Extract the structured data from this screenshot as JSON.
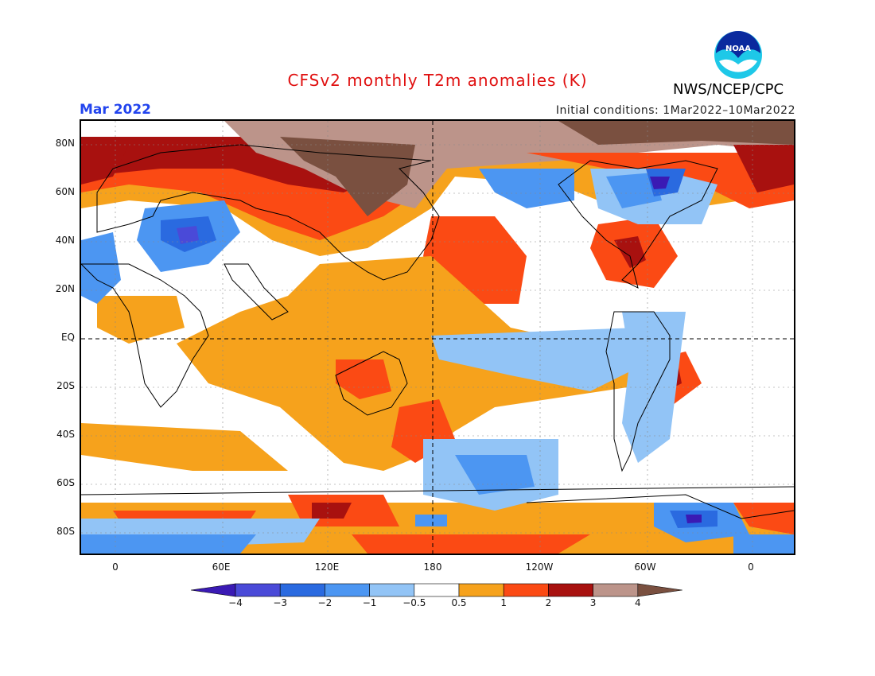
{
  "title": "CFSv2 monthly T2m anomalies (K)",
  "agency": "NWS/NCEP/CPC",
  "logo_text": "NOAA",
  "month": "Mar 2022",
  "initial_conditions": "Initial conditions: 1Mar2022–10Mar2022",
  "lat_labels": [
    "80N",
    "60N",
    "40N",
    "20N",
    "EQ",
    "20S",
    "40S",
    "60S",
    "80S"
  ],
  "lon_labels": [
    "0",
    "60E",
    "120E",
    "180",
    "120W",
    "60W",
    "0"
  ],
  "colorbar": {
    "labels": [
      "−4",
      "−3",
      "−2",
      "−1",
      "−0.5",
      "0.5",
      "1",
      "2",
      "3",
      "4"
    ],
    "colors": [
      "#3a1ab4",
      "#4a4ad8",
      "#2a6ae0",
      "#4c96f2",
      "#92c4f6",
      "#ffffff",
      "#f6a21c",
      "#fb4a14",
      "#a8110f",
      "#bc948a",
      "#7a5040"
    ]
  }
}
